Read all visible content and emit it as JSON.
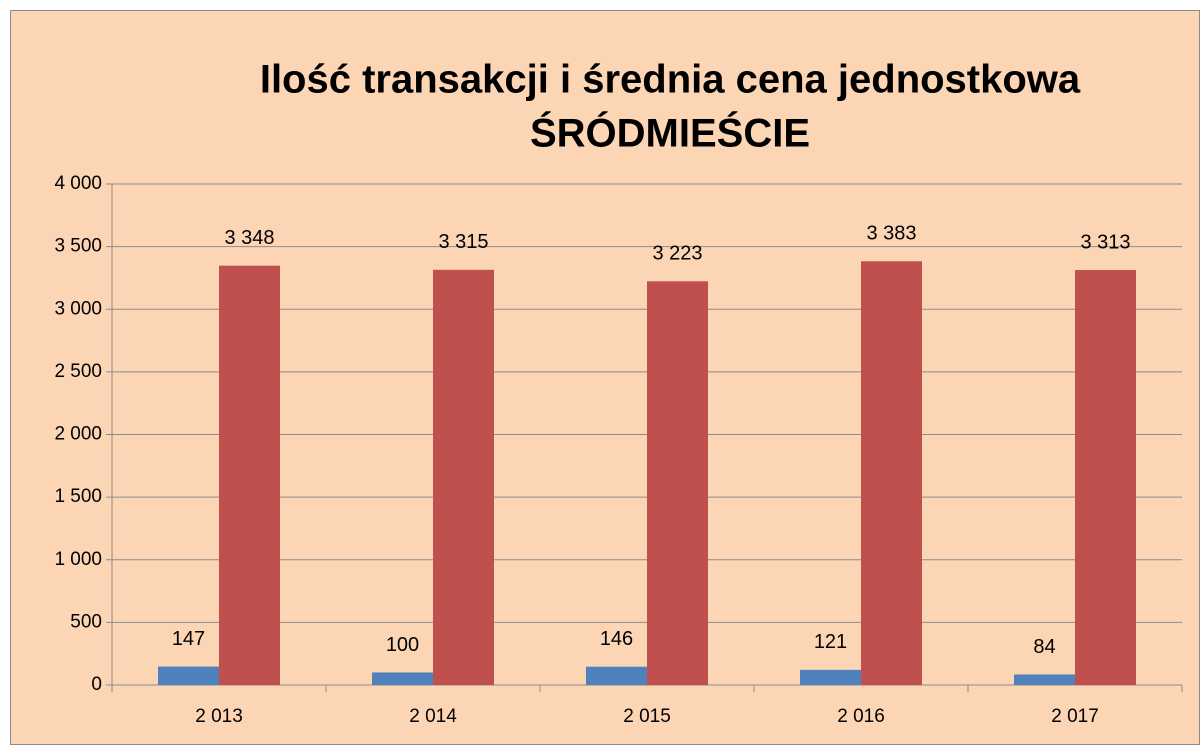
{
  "chart_data": {
    "type": "bar",
    "title": "Ilość transakcji i średnia cena jednostkowa",
    "subtitle": "ŚRÓDMIEŚCIE",
    "categories": [
      "2 013",
      "2 014",
      "2 015",
      "2 016",
      "2 017"
    ],
    "series": [
      {
        "color": "#4f81bd",
        "values": [
          147,
          100,
          146,
          121,
          84
        ]
      },
      {
        "color": "#c0504d",
        "values": [
          3348,
          3315,
          3223,
          3383,
          3313
        ],
        "value_labels": [
          "3 348",
          "3 315",
          "3 223",
          "3 383",
          "3 313"
        ]
      }
    ],
    "ylim": [
      0,
      4000
    ],
    "yticks": [
      0,
      500,
      {
        "value": 1000,
        "label": "1 000"
      },
      {
        "value": 1500,
        "label": "1 500"
      },
      {
        "value": 2000,
        "label": "2 000"
      },
      {
        "value": 2500,
        "label": "2 500"
      },
      {
        "value": 3000,
        "label": "3 000"
      },
      {
        "value": 3500,
        "label": "3 500"
      },
      {
        "value": 4000,
        "label": "4 000"
      }
    ],
    "grid": true
  }
}
